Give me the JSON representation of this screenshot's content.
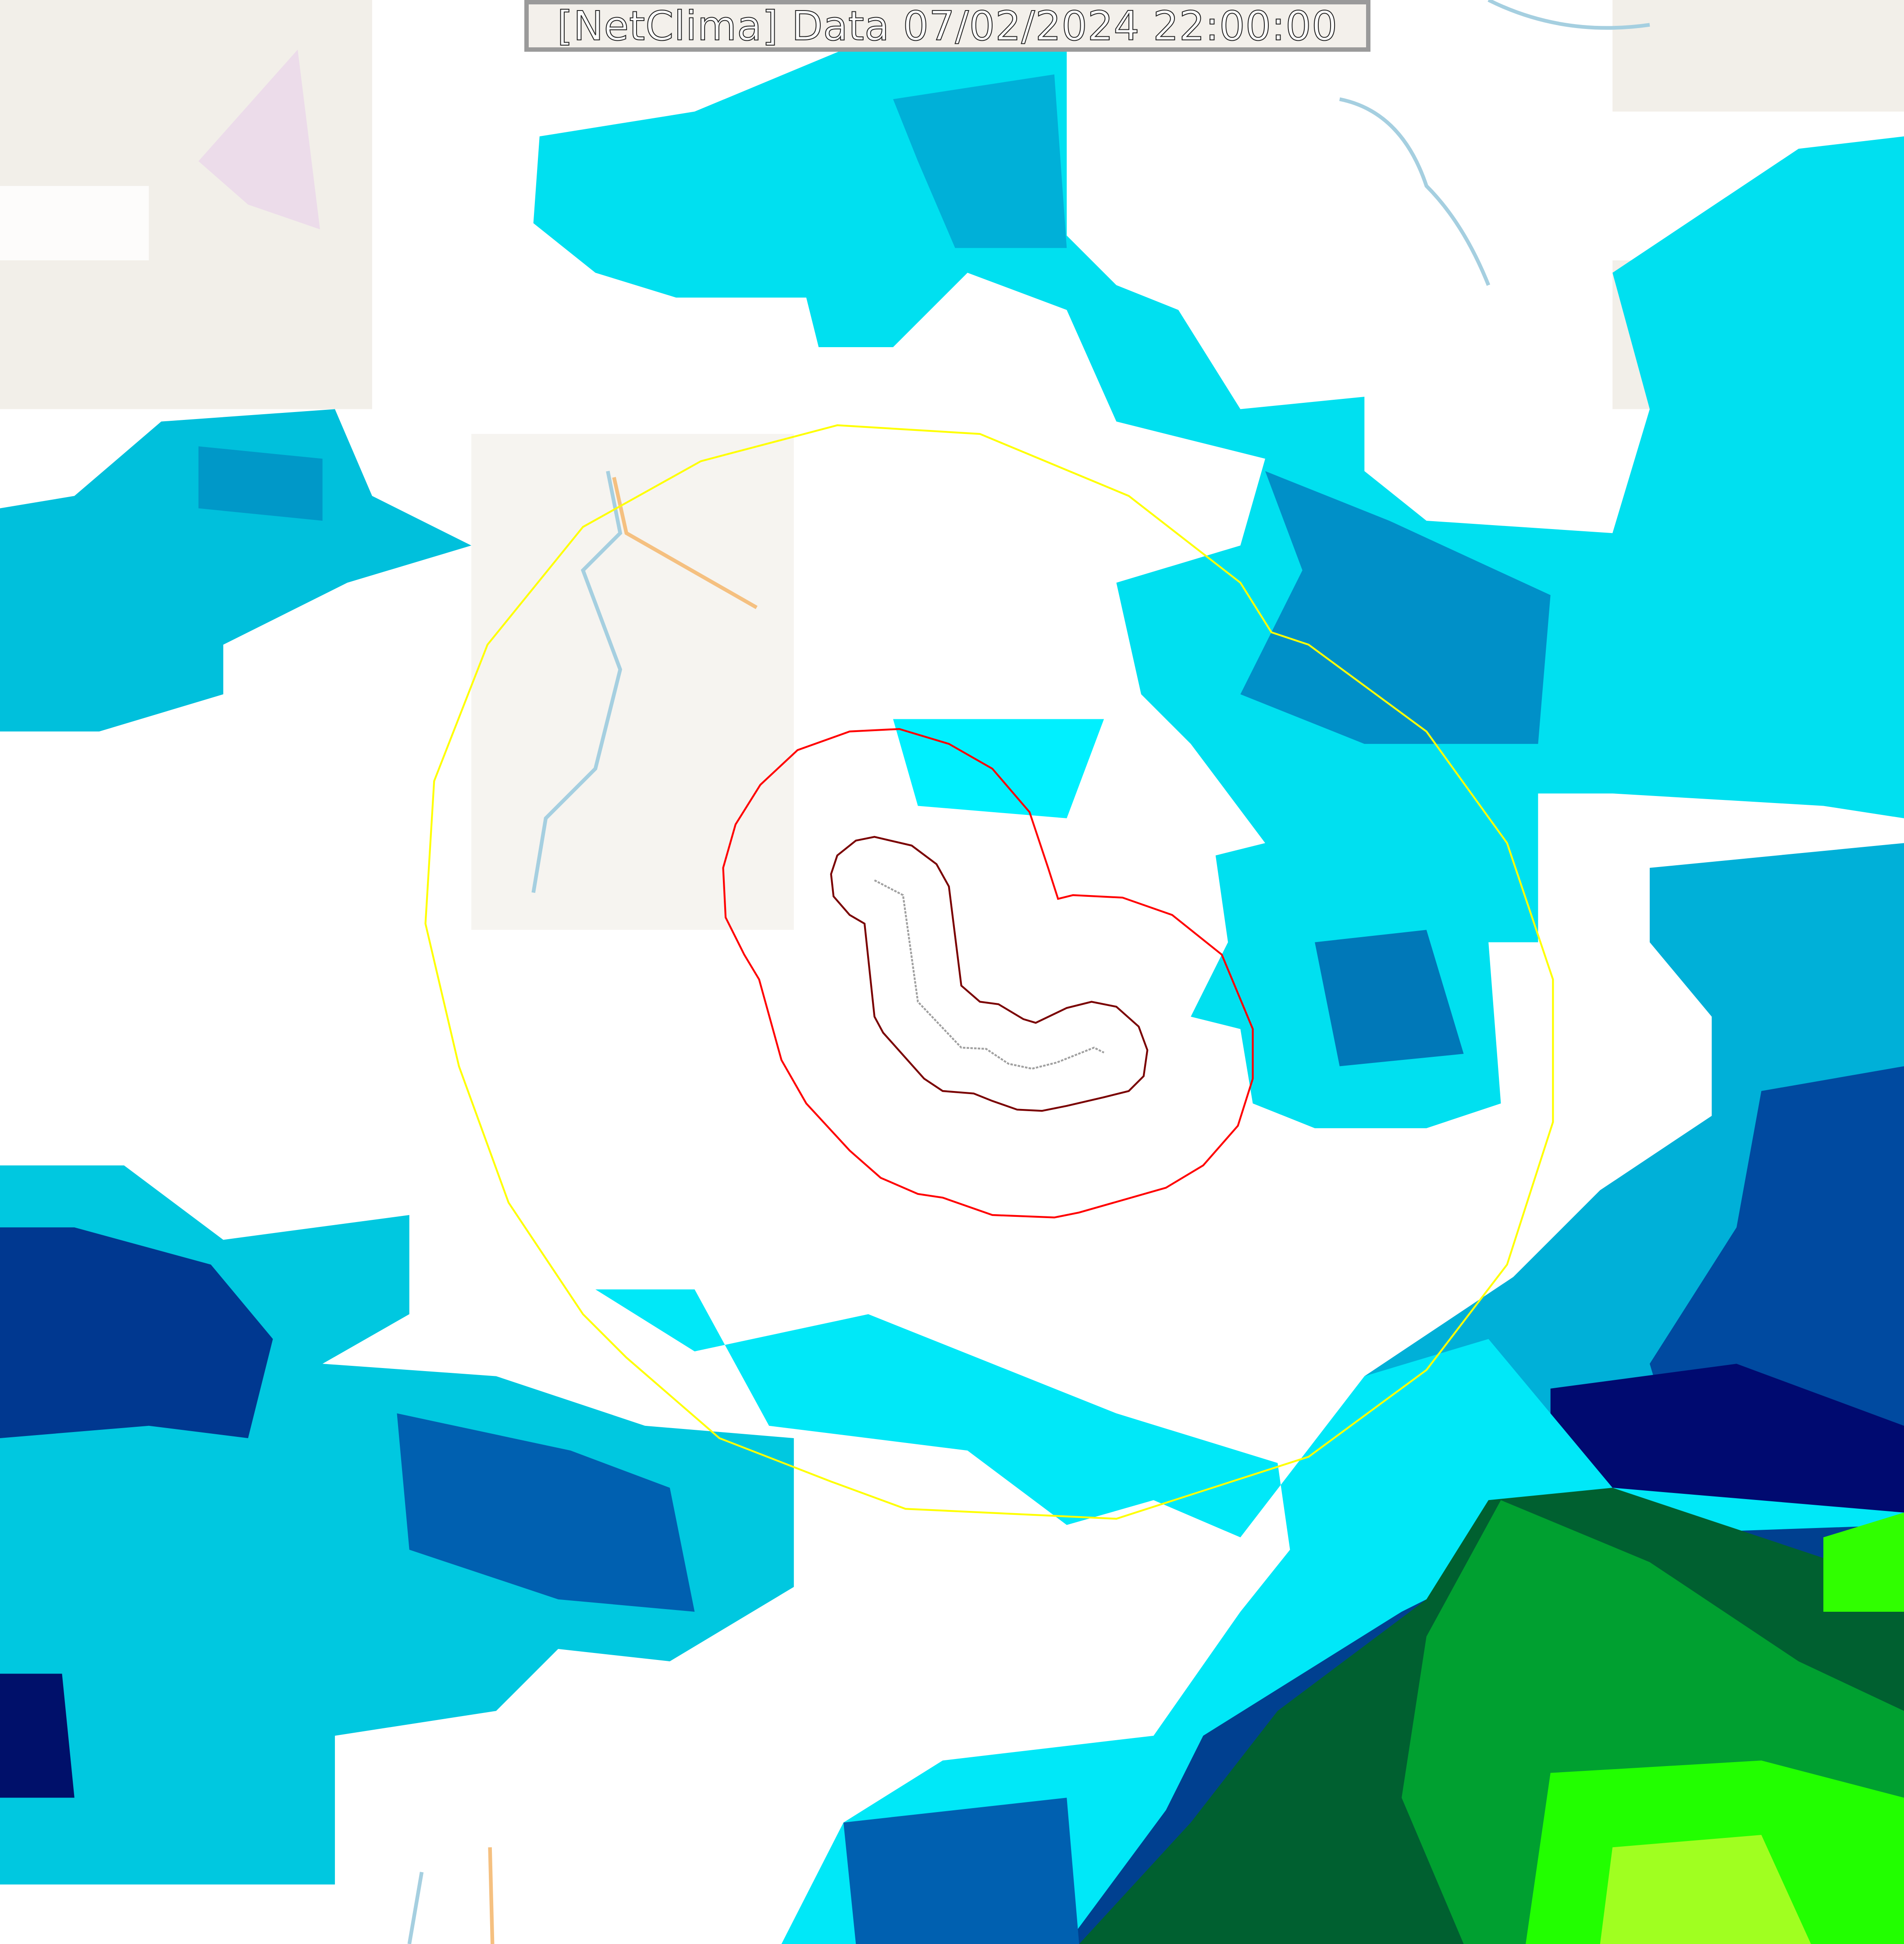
{
  "title": "[NetClima] Data 07/02/2024 22:00:00",
  "colors": {
    "land": "#f2efe9",
    "cloud": "#ffffff",
    "rain_light": "#00ffff",
    "rain_mid": "#00c8e0",
    "rain_heavy": "#0088c0",
    "rain_very_heavy": "#00206e",
    "rain_extreme_green": "#00a030",
    "rain_extreme_lime": "#3cff00",
    "outer_ring": "#ffff00",
    "inner_ring": "#ff0000",
    "core_ring": "#7a0000",
    "track": "#a0a0a0",
    "river": "#a5cfe0",
    "road": "#f5c080"
  },
  "layers": [
    "base-map",
    "radar-precipitation",
    "outer-area-ring",
    "inner-area-ring",
    "core-area-ring",
    "storm-track"
  ]
}
